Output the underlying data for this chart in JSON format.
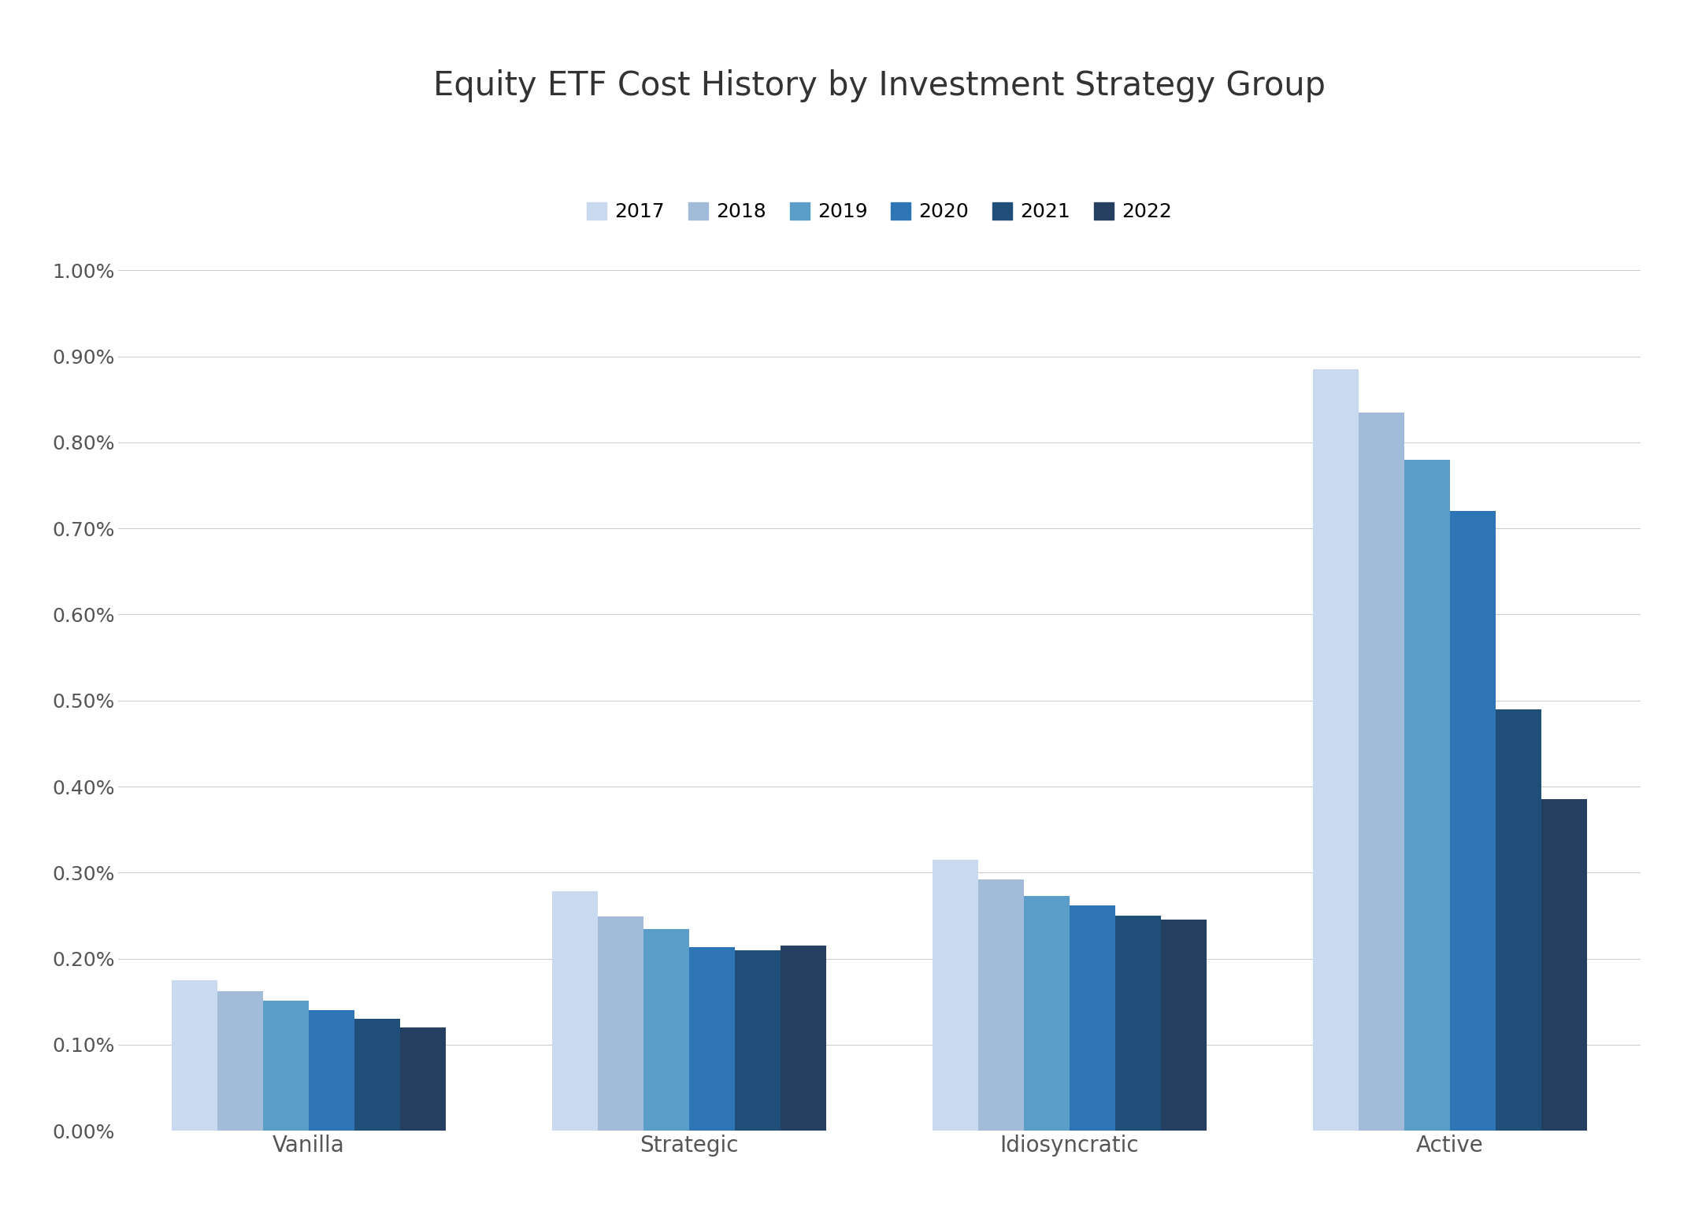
{
  "title": "Equity ETF Cost History by Investment Strategy Group",
  "categories": [
    "Vanilla",
    "Strategic",
    "Idiosyncratic",
    "Active"
  ],
  "years": [
    "2017",
    "2018",
    "2019",
    "2020",
    "2021",
    "2022"
  ],
  "colors": [
    "#c9d9ef",
    "#a2bbd8",
    "#5b9dc9",
    "#2e75b6",
    "#1f4e79",
    "#243f60"
  ],
  "values": {
    "Vanilla": [
      0.00175,
      0.00162,
      0.00151,
      0.0014,
      0.0013,
      0.0012
    ],
    "Strategic": [
      0.00278,
      0.00249,
      0.00234,
      0.00213,
      0.0021,
      0.00215
    ],
    "Idiosyncratic": [
      0.00315,
      0.00292,
      0.00273,
      0.00262,
      0.0025,
      0.00245
    ],
    "Active": [
      0.00885,
      0.00835,
      0.0078,
      0.0072,
      0.0049,
      0.00385
    ]
  },
  "ylim": [
    0,
    0.01
  ],
  "ytick_values": [
    0.0,
    0.001,
    0.002,
    0.003,
    0.004,
    0.005,
    0.006,
    0.007,
    0.008,
    0.009,
    0.01
  ],
  "background_color": "#ffffff",
  "grid_color": "#cccccc",
  "title_fontsize": 30,
  "legend_fontsize": 18,
  "tick_fontsize": 18,
  "label_fontsize": 20
}
